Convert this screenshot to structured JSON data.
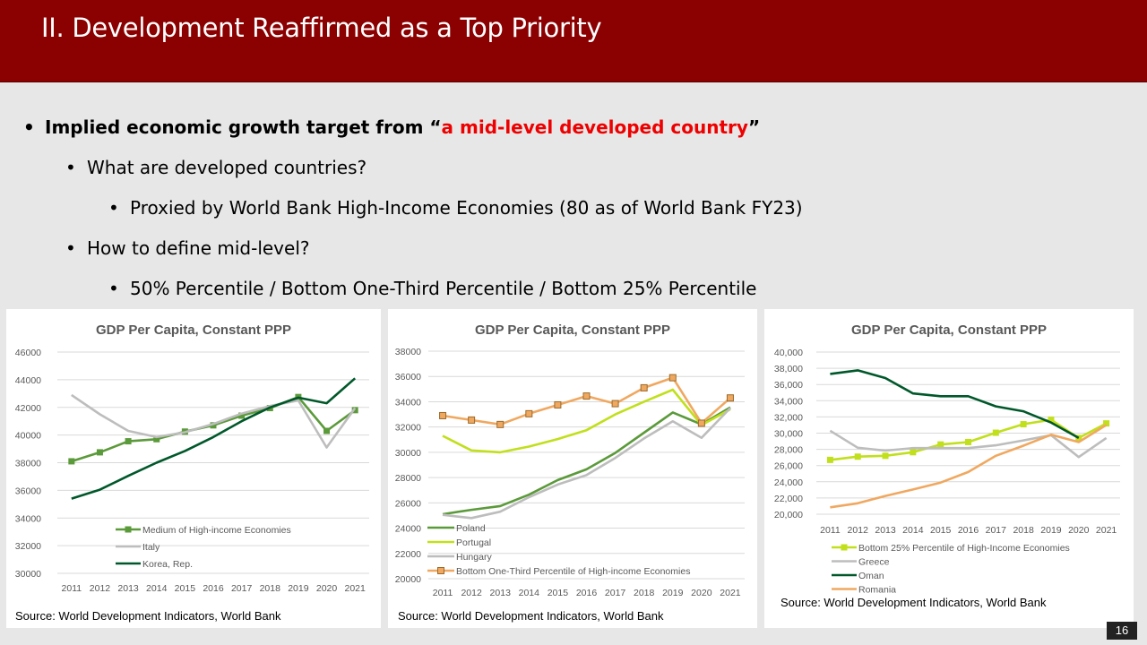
{
  "slide": {
    "title": "II. Development Reaffirmed as a Top Priority",
    "page_number": "16"
  },
  "bullets": [
    {
      "level": 1,
      "before": "Implied economic growth target from “",
      "highlight": "a mid-level developed country",
      "after": "”"
    },
    {
      "level": 2,
      "text": "What are developed countries?"
    },
    {
      "level": 3,
      "text": "Proxied by World Bank High-Income Economies (80 as of World Bank FY23)"
    },
    {
      "level": 2,
      "text": "How to define mid-level?"
    },
    {
      "level": 3,
      "text": "50% Percentile  / Bottom One-Third Percentile  / Bottom 25% Percentile"
    }
  ],
  "colors": {
    "header": "#8b0000",
    "highlight": "#ee0000"
  },
  "chart_data": [
    {
      "type": "line",
      "title": "GDP Per Capita, Constant PPP",
      "x": [
        2011,
        2012,
        2013,
        2014,
        2015,
        2016,
        2017,
        2018,
        2019,
        2020,
        2021
      ],
      "ylim": [
        30000,
        46000
      ],
      "yticks": [
        "30000",
        "32000",
        "34000",
        "36000",
        "38000",
        "40000",
        "42000",
        "44000",
        "46000"
      ],
      "series": [
        {
          "name": "Medium of High-income Economies",
          "color": "#5b9a3a",
          "marker": "square",
          "values": [
            38100,
            38750,
            39550,
            39700,
            40250,
            40700,
            41400,
            41950,
            42750,
            40300,
            41800
          ]
        },
        {
          "name": "Italy",
          "color": "#bdbdbd",
          "marker": "none",
          "values": [
            42900,
            41500,
            40300,
            39850,
            40200,
            40800,
            41550,
            42100,
            42500,
            39100,
            41950
          ]
        },
        {
          "name": "Korea, Rep.",
          "color": "#00582a",
          "marker": "none",
          "values": [
            35400,
            36050,
            37050,
            38000,
            38850,
            39850,
            41000,
            42000,
            42700,
            42300,
            44100
          ]
        }
      ],
      "legend": "bottom",
      "source": "Source: World Development Indicators, World Bank"
    },
    {
      "type": "line",
      "title": "GDP Per Capita, Constant PPP",
      "x": [
        2011,
        2012,
        2013,
        2014,
        2015,
        2016,
        2017,
        2018,
        2019,
        2020,
        2021
      ],
      "ylim": [
        20000,
        38000
      ],
      "yticks": [
        "20000",
        "22000",
        "24000",
        "26000",
        "28000",
        "30000",
        "32000",
        "34000",
        "36000",
        "38000"
      ],
      "series": [
        {
          "name": "Poland",
          "color": "#5b9a3a",
          "marker": "none",
          "values": [
            25100,
            25450,
            25750,
            26650,
            27800,
            28650,
            29950,
            31550,
            33150,
            32200,
            33550
          ]
        },
        {
          "name": "Portugal",
          "color": "#c2df1c",
          "marker": "none",
          "values": [
            31300,
            30150,
            30000,
            30450,
            31050,
            31750,
            33000,
            34000,
            34950,
            32150,
            33400
          ]
        },
        {
          "name": "Hungary",
          "color": "#bdbdbd",
          "marker": "none",
          "values": [
            25050,
            24800,
            25300,
            26450,
            27450,
            28200,
            29550,
            31100,
            32450,
            31150,
            33500
          ]
        },
        {
          "name": "Bottom One-Third Percentile of High-income Economies",
          "color": "#f0a860",
          "marker": "square",
          "values": [
            32900,
            32550,
            32200,
            33050,
            33750,
            34450,
            33850,
            35100,
            35900,
            32300,
            34300
          ]
        }
      ],
      "legend": "bottom",
      "source": "Source: World Development Indicators, World Bank"
    },
    {
      "type": "line",
      "title": "GDP Per Capita, Constant PPP",
      "x": [
        2011,
        2012,
        2013,
        2014,
        2015,
        2016,
        2017,
        2018,
        2019,
        2020,
        2021
      ],
      "ylim": [
        20000,
        40000
      ],
      "yticks": [
        "20,000",
        "22,000",
        "24,000",
        "26,000",
        "28,000",
        "30,000",
        "32,000",
        "34,000",
        "36,000",
        "38,000",
        "40,000"
      ],
      "series": [
        {
          "name": "Bottom 25% Percentile of High-Income Economies",
          "color": "#c2df1c",
          "marker": "square",
          "values": [
            26700,
            27100,
            27200,
            27650,
            28600,
            28900,
            30050,
            31100,
            31650,
            29400,
            31200
          ]
        },
        {
          "name": "Greece",
          "color": "#bdbdbd",
          "marker": "none",
          "values": [
            30300,
            28200,
            27850,
            28150,
            28150,
            28150,
            28500,
            29100,
            29750,
            27050,
            29400
          ]
        },
        {
          "name": "Oman",
          "color": "#00582a",
          "marker": "none",
          "values": [
            37300,
            37750,
            36800,
            34900,
            34550,
            34550,
            33300,
            32700,
            31300,
            29400,
            null
          ]
        },
        {
          "name": "Romania",
          "color": "#f0a860",
          "marker": "none",
          "values": [
            20850,
            21350,
            22250,
            23050,
            23900,
            25200,
            27200,
            28450,
            29800,
            28900,
            31000
          ]
        }
      ],
      "legend": "bottom",
      "source": "Source: World Development Indicators, World Bank"
    }
  ]
}
